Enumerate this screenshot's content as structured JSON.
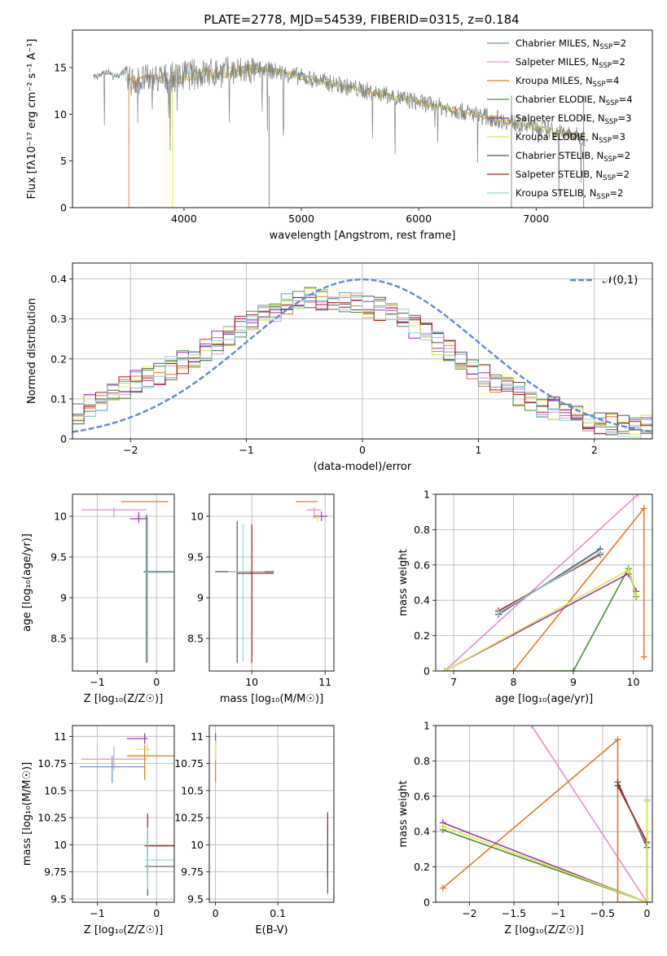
{
  "figure_title": "PLATE=2778, MJD=54539, FIBERID=0315, z=0.184",
  "legend_series": [
    {
      "name": "Chabrier MILES",
      "nssp": "2",
      "color": "#6f8fd8"
    },
    {
      "name": "Salpeter MILES",
      "nssp": "2",
      "color": "#e28fd0"
    },
    {
      "name": "Kroupa MILES",
      "nssp": "4",
      "color": "#e07b20"
    },
    {
      "name": "Chabrier ELODIE",
      "nssp": "4",
      "color": "#4f8a3a"
    },
    {
      "name": "Salpeter ELODIE",
      "nssp": "3",
      "color": "#9b30b8"
    },
    {
      "name": "Kroupa ELODIE",
      "nssp": "3",
      "color": "#d8ec40"
    },
    {
      "name": "Chabrier STELIB",
      "nssp": "2",
      "color": "#555555"
    },
    {
      "name": "Salpeter STELIB",
      "nssp": "2",
      "color": "#b01818"
    },
    {
      "name": "Kroupa STELIB",
      "nssp": "2",
      "color": "#8ad8d8"
    }
  ],
  "legend_ssp_label": "N",
  "legend_ssp_sub": "SSP",
  "chart_data": [
    {
      "id": "spectrum",
      "type": "line",
      "xlabel": "wavelength [Angstrom, rest frame]",
      "ylabel": "Flux [fλ10⁻¹⁷ erg cm⁻² s⁻¹ A⁻¹]",
      "xlim": [
        3050,
        7990
      ],
      "ylim": [
        0,
        19
      ],
      "xticks": [
        4000,
        5000,
        6000,
        7000
      ],
      "yticks": [
        0,
        5,
        10,
        15
      ],
      "grid": false,
      "data_color": "#7f7f7f",
      "model_colors": [
        "#8ad8d8",
        "#e07b20",
        "#d8ec40"
      ],
      "model_start_wavelengths": [
        3230,
        3530,
        3900
      ],
      "note": "Observed spectrum (grey) over models; flux near 14.5 at 3300 A falling to about 7.5 at 7400 A"
    },
    {
      "id": "residuals",
      "type": "line",
      "xlabel": "(data-model)/error",
      "ylabel": "Normed distribution",
      "xlim": [
        -2.5,
        2.5
      ],
      "ylim": [
        0,
        0.44
      ],
      "xticks": [
        -2,
        -1,
        0,
        1,
        2
      ],
      "yticks": [
        0.0,
        0.1,
        0.2,
        0.3,
        0.4
      ],
      "grid": true,
      "reference_curve": {
        "name": "𝒩(0,1)",
        "mean": 0,
        "sigma": 1,
        "color": "#5b8ad6"
      },
      "histogram_envelope_x": [
        -2.5,
        -2.3,
        -2.1,
        -1.9,
        -1.7,
        -1.5,
        -1.3,
        -1.1,
        -0.9,
        -0.7,
        -0.5,
        -0.3,
        -0.1,
        0.1,
        0.3,
        0.5,
        0.7,
        0.9,
        1.1,
        1.3,
        1.5,
        1.7,
        1.9,
        2.1,
        2.3,
        2.5
      ],
      "histogram_envelope_y": [
        0.06,
        0.09,
        0.12,
        0.15,
        0.17,
        0.2,
        0.23,
        0.27,
        0.3,
        0.33,
        0.35,
        0.35,
        0.34,
        0.33,
        0.31,
        0.27,
        0.23,
        0.19,
        0.15,
        0.12,
        0.09,
        0.07,
        0.05,
        0.04,
        0.03,
        0.03
      ]
    },
    {
      "id": "age-vs-Z",
      "type": "scatter",
      "xlabel": "Z [log₁₀(Z/Z☉)]",
      "ylabel": "age  [log₁₀(age/yr)]",
      "xlim": [
        -1.42,
        0.3
      ],
      "ylim": [
        8.1,
        10.27
      ],
      "xticks": [
        -1,
        0
      ],
      "yticks": [
        8.5,
        9.0,
        9.5,
        10.0
      ],
      "grid": true,
      "points": [
        {
          "x": -0.72,
          "y": 10.08,
          "xerr": [
            0.55,
            0.55
          ],
          "yerr": [
            0.1,
            0.03
          ],
          "color": "#e28fd0"
        },
        {
          "x": -0.3,
          "y": 10.18,
          "xerr": [
            0.3,
            0.5
          ],
          "yerr": [
            0,
            0
          ],
          "color": "#e07b20"
        },
        {
          "x": -0.3,
          "y": 9.97,
          "xerr": [
            0.15,
            0.15
          ],
          "yerr": [
            0.05,
            0.08
          ],
          "color": "#9b30b8"
        },
        {
          "x": -0.17,
          "y": 9.32,
          "xerr": [
            0.05,
            0.45
          ],
          "yerr": [
            1.12,
            0.7
          ],
          "color": "#555555"
        },
        {
          "x": -0.15,
          "y": 9.31,
          "xerr": [
            0.05,
            0.45
          ],
          "yerr": [
            1.1,
            0.68
          ],
          "color": "#8ad8d8"
        }
      ]
    },
    {
      "id": "age-vs-mass",
      "type": "scatter",
      "xlabel": "mass [log₁₀(M/M☉)]",
      "ylabel": "",
      "xlim": [
        9.42,
        11.12
      ],
      "ylim": [
        8.1,
        10.27
      ],
      "xticks": [
        10,
        11
      ],
      "yticks": [
        8.5,
        9.0,
        9.5,
        10.0
      ],
      "grid": true,
      "points": [
        {
          "x": 9.8,
          "y": 9.32,
          "xerr": [
            0.3,
            0.5
          ],
          "yerr": [
            1.12,
            0.62
          ],
          "color": "#555555"
        },
        {
          "x": 9.88,
          "y": 9.32,
          "xerr": [
            0.2,
            0.3
          ],
          "yerr": [
            1.1,
            0.58
          ],
          "color": "#8ad8d8"
        },
        {
          "x": 10.0,
          "y": 9.3,
          "xerr": [
            0.2,
            0.3
          ],
          "yerr": [
            1.1,
            0.6
          ],
          "color": "#b01818"
        },
        {
          "x": 10.75,
          "y": 10.18,
          "xerr": [
            0.15,
            0.15
          ],
          "yerr": [
            0,
            0
          ],
          "color": "#e07b20"
        },
        {
          "x": 10.85,
          "y": 10.08,
          "xerr": [
            0.1,
            0.1
          ],
          "yerr": [
            0.1,
            0.03
          ],
          "color": "#e28fd0"
        },
        {
          "x": 10.95,
          "y": 10.0,
          "xerr": [
            0.1,
            0.08
          ],
          "yerr": [
            0.06,
            0.06
          ],
          "color": "#9b30b8"
        },
        {
          "x": 10.9,
          "y": 9.98,
          "xerr": [
            0.08,
            0.08
          ],
          "yerr": [
            0.05,
            0.05
          ],
          "color": "#d8ec40"
        }
      ]
    },
    {
      "id": "massweight-vs-age",
      "type": "line",
      "xlabel": "age  [log₁₀(age/yr)]",
      "ylabel": "mass weight",
      "xlim": [
        6.7,
        10.32
      ],
      "ylim": [
        0,
        1.0
      ],
      "xticks": [
        7,
        8,
        9,
        10
      ],
      "yticks": [
        0.0,
        0.2,
        0.4,
        0.6,
        0.8,
        1.0
      ],
      "grid": true,
      "series": [
        {
          "color": "#e28fd0",
          "x": [
            6.85,
            10.08
          ],
          "y": [
            0.0,
            1.0
          ]
        },
        {
          "color": "#e07b20",
          "x": [
            8.0,
            10.18,
            10.18
          ],
          "y": [
            0.0,
            0.92,
            0.08
          ]
        },
        {
          "color": "#b01818",
          "x": [
            7.75,
            9.45
          ],
          "y": [
            0.34,
            0.66
          ]
        },
        {
          "color": "#555555",
          "x": [
            7.75,
            9.45
          ],
          "y": [
            0.32,
            0.69
          ]
        },
        {
          "color": "#8ad8d8",
          "x": [
            7.75,
            9.45
          ],
          "y": [
            0.33,
            0.67
          ]
        },
        {
          "color": "#4f8a3a",
          "x": [
            6.85,
            9.0,
            9.92,
            10.05
          ],
          "y": [
            0.0,
            0.0,
            0.58,
            0.42
          ]
        },
        {
          "color": "#9b30b8",
          "x": [
            6.85,
            9.92,
            10.05
          ],
          "y": [
            0.0,
            0.55,
            0.45
          ]
        },
        {
          "color": "#d8ec40",
          "x": [
            6.85,
            9.92,
            10.05
          ],
          "y": [
            0.0,
            0.57,
            0.43
          ]
        }
      ]
    },
    {
      "id": "mass-vs-Z",
      "type": "scatter",
      "xlabel": "Z [log₁₀(Z/Z☉)]",
      "ylabel": "mass [log₁₀(M/M☉)]",
      "xlim": [
        -1.42,
        0.3
      ],
      "ylim": [
        9.47,
        11.1
      ],
      "xticks": [
        -1,
        0
      ],
      "yticks": [
        9.5,
        9.75,
        10.0,
        10.25,
        10.5,
        10.75,
        11.0
      ],
      "grid": true,
      "points": [
        {
          "x": -0.75,
          "y": 10.72,
          "xerr": [
            0.55,
            0.55
          ],
          "yerr": [
            0.15,
            0.1
          ],
          "color": "#6f8fd8"
        },
        {
          "x": -0.72,
          "y": 10.79,
          "xerr": [
            0.55,
            0.55
          ],
          "yerr": [
            0.1,
            0.12
          ],
          "color": "#e28fd0"
        },
        {
          "x": -0.2,
          "y": 10.82,
          "xerr": [
            0.3,
            0.5
          ],
          "yerr": [
            0.22,
            0.1
          ],
          "color": "#e07b20"
        },
        {
          "x": -0.2,
          "y": 10.98,
          "xerr": [
            0.3,
            0.05
          ],
          "yerr": [
            0.05,
            0.05
          ],
          "color": "#9b30b8"
        },
        {
          "x": -0.15,
          "y": 10.88,
          "xerr": [
            0.2,
            0.05
          ],
          "yerr": [
            0.05,
            0.05
          ],
          "color": "#d8ec40"
        },
        {
          "x": -0.15,
          "y": 9.99,
          "xerr": [
            0.05,
            0.45
          ],
          "yerr": [
            0.3,
            0.3
          ],
          "color": "#b01818"
        },
        {
          "x": -0.15,
          "y": 9.8,
          "xerr": [
            0.05,
            0.45
          ],
          "yerr": [
            0.27,
            0.3
          ],
          "color": "#555555"
        },
        {
          "x": -0.15,
          "y": 9.86,
          "xerr": [
            0.05,
            0.45
          ],
          "yerr": [
            0.27,
            0.3
          ],
          "color": "#8ad8d8"
        }
      ]
    },
    {
      "id": "mass-vs-ebv",
      "type": "scatter",
      "xlabel": "E(B-V)",
      "ylabel": "",
      "xlim": [
        -0.01,
        0.19
      ],
      "ylim": [
        9.47,
        11.1
      ],
      "xticks": [
        0.0,
        0.1
      ],
      "yticks": [
        9.5,
        9.75,
        10.0,
        10.25,
        10.5,
        10.75,
        11.0
      ],
      "grid": true,
      "points": [
        {
          "x": 0.0,
          "y": 10.98,
          "xerr": [
            0,
            0
          ],
          "yerr": [
            0.05,
            0.05
          ],
          "color": "#9b30b8"
        },
        {
          "x": 0.0,
          "y": 10.8,
          "xerr": [
            0,
            0
          ],
          "yerr": [
            0.22,
            0.15
          ],
          "color": "#e07b20"
        },
        {
          "x": 0.0,
          "y": 10.88,
          "xerr": [
            0,
            0
          ],
          "yerr": [
            0.1,
            0.08
          ],
          "color": "#d8ec40"
        },
        {
          "x": 0.18,
          "y": 10.0,
          "xerr": [
            0,
            0
          ],
          "yerr": [
            0.3,
            0.3
          ],
          "color": "#b01818"
        },
        {
          "x": 0.18,
          "y": 9.85,
          "xerr": [
            0,
            0
          ],
          "yerr": [
            0.3,
            0.33
          ],
          "color": "#555555"
        }
      ]
    },
    {
      "id": "massweight-vs-Z",
      "type": "line",
      "xlabel": "Z [log₁₀(Z/Z☉)]",
      "ylabel": "mass weight",
      "xlim": [
        -2.38,
        0.06
      ],
      "ylim": [
        0,
        1.0
      ],
      "xticks": [
        -2.0,
        -1.5,
        -1.0,
        -0.5,
        0.0
      ],
      "yticks": [
        0.0,
        0.2,
        0.4,
        0.6,
        0.8,
        1.0
      ],
      "grid": true,
      "series": [
        {
          "color": "#e28fd0",
          "x": [
            -1.3,
            0.0
          ],
          "y": [
            1.0,
            0.0
          ]
        },
        {
          "color": "#e07b20",
          "x": [
            -2.3,
            -0.33,
            -0.33,
            0.0,
            0.0
          ],
          "y": [
            0.08,
            0.92,
            0.0,
            0.0,
            0.58
          ]
        },
        {
          "color": "#555555",
          "x": [
            -0.33,
            0.0,
            0.0
          ],
          "y": [
            0.68,
            0.31,
            0.0
          ]
        },
        {
          "color": "#8ad8d8",
          "x": [
            -0.33,
            0.0,
            0.0
          ],
          "y": [
            0.66,
            0.33,
            0.58
          ]
        },
        {
          "color": "#b01818",
          "x": [
            -0.33,
            0.0
          ],
          "y": [
            0.66,
            0.34
          ]
        },
        {
          "color": "#9b30b8",
          "x": [
            -2.3,
            0.0
          ],
          "y": [
            0.45,
            0.0
          ]
        },
        {
          "color": "#4f8a3a",
          "x": [
            -2.3,
            0.0
          ],
          "y": [
            0.41,
            0.0
          ]
        },
        {
          "color": "#d8ec40",
          "x": [
            -2.3,
            0.0,
            0.0
          ],
          "y": [
            0.43,
            0.0,
            0.57
          ]
        }
      ]
    }
  ]
}
